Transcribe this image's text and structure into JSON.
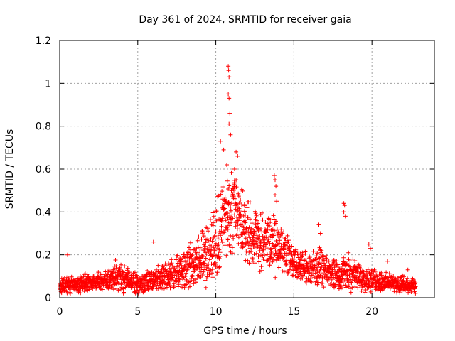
{
  "chart_data": {
    "type": "scatter",
    "title": "Day 361 of 2024, SRMTID for receiver gaia",
    "xlabel": "GPS time / hours",
    "ylabel": "SRMTID / TECUs",
    "xlim": [
      0,
      24
    ],
    "ylim": [
      0,
      1.2
    ],
    "x_ticks": [
      0,
      5,
      10,
      15,
      20
    ],
    "x_tick_labels": [
      "0",
      "5",
      "10",
      "15",
      "20"
    ],
    "y_ticks": [
      0,
      0.2,
      0.4,
      0.6,
      0.8,
      1,
      1.2
    ],
    "y_tick_labels": [
      "0",
      "0.2",
      "0.4",
      "0.6",
      "0.8",
      "1",
      "1.2"
    ],
    "grid": true,
    "marker": "+",
    "color": "#ff0000",
    "series": [
      {
        "name": "SRMTID",
        "envelope_x": [
          0,
          1,
          2,
          3,
          3.5,
          4,
          5,
          6,
          7,
          8,
          9,
          10,
          10.5,
          11,
          11.5,
          12,
          13,
          13.8,
          14.5,
          15,
          16,
          16.5,
          17,
          18,
          18.5,
          19,
          20,
          21,
          22,
          22.8
        ],
        "envelope_center": [
          0.06,
          0.06,
          0.07,
          0.08,
          0.1,
          0.09,
          0.06,
          0.08,
          0.1,
          0.14,
          0.18,
          0.25,
          0.35,
          0.38,
          0.36,
          0.3,
          0.26,
          0.24,
          0.22,
          0.16,
          0.13,
          0.15,
          0.12,
          0.11,
          0.12,
          0.1,
          0.08,
          0.07,
          0.06,
          0.05
        ],
        "envelope_spread": [
          0.03,
          0.03,
          0.03,
          0.03,
          0.05,
          0.05,
          0.03,
          0.04,
          0.05,
          0.07,
          0.09,
          0.13,
          0.16,
          0.15,
          0.13,
          0.11,
          0.09,
          0.1,
          0.08,
          0.06,
          0.05,
          0.07,
          0.05,
          0.05,
          0.06,
          0.05,
          0.04,
          0.03,
          0.03,
          0.02
        ],
        "outliers": [
          {
            "x": 0.5,
            "y": 0.2
          },
          {
            "x": 6.0,
            "y": 0.26
          },
          {
            "x": 10.3,
            "y": 0.73
          },
          {
            "x": 10.5,
            "y": 0.69
          },
          {
            "x": 10.7,
            "y": 0.62
          },
          {
            "x": 10.8,
            "y": 1.08
          },
          {
            "x": 10.82,
            "y": 1.06
          },
          {
            "x": 10.85,
            "y": 1.03
          },
          {
            "x": 10.8,
            "y": 0.95
          },
          {
            "x": 10.85,
            "y": 0.93
          },
          {
            "x": 10.9,
            "y": 0.86
          },
          {
            "x": 10.85,
            "y": 0.81
          },
          {
            "x": 10.95,
            "y": 0.76
          },
          {
            "x": 11.3,
            "y": 0.68
          },
          {
            "x": 11.4,
            "y": 0.66
          },
          {
            "x": 11.2,
            "y": 0.6
          },
          {
            "x": 11.3,
            "y": 0.55
          },
          {
            "x": 11.1,
            "y": 0.51
          },
          {
            "x": 13.75,
            "y": 0.57
          },
          {
            "x": 13.8,
            "y": 0.55
          },
          {
            "x": 13.85,
            "y": 0.52
          },
          {
            "x": 13.8,
            "y": 0.48
          },
          {
            "x": 13.9,
            "y": 0.45
          },
          {
            "x": 16.6,
            "y": 0.34
          },
          {
            "x": 16.7,
            "y": 0.3
          },
          {
            "x": 18.2,
            "y": 0.44
          },
          {
            "x": 18.25,
            "y": 0.43
          },
          {
            "x": 18.2,
            "y": 0.4
          },
          {
            "x": 18.3,
            "y": 0.38
          },
          {
            "x": 19.8,
            "y": 0.25
          },
          {
            "x": 19.9,
            "y": 0.23
          },
          {
            "x": 21.0,
            "y": 0.17
          },
          {
            "x": 22.3,
            "y": 0.13
          }
        ]
      }
    ]
  }
}
